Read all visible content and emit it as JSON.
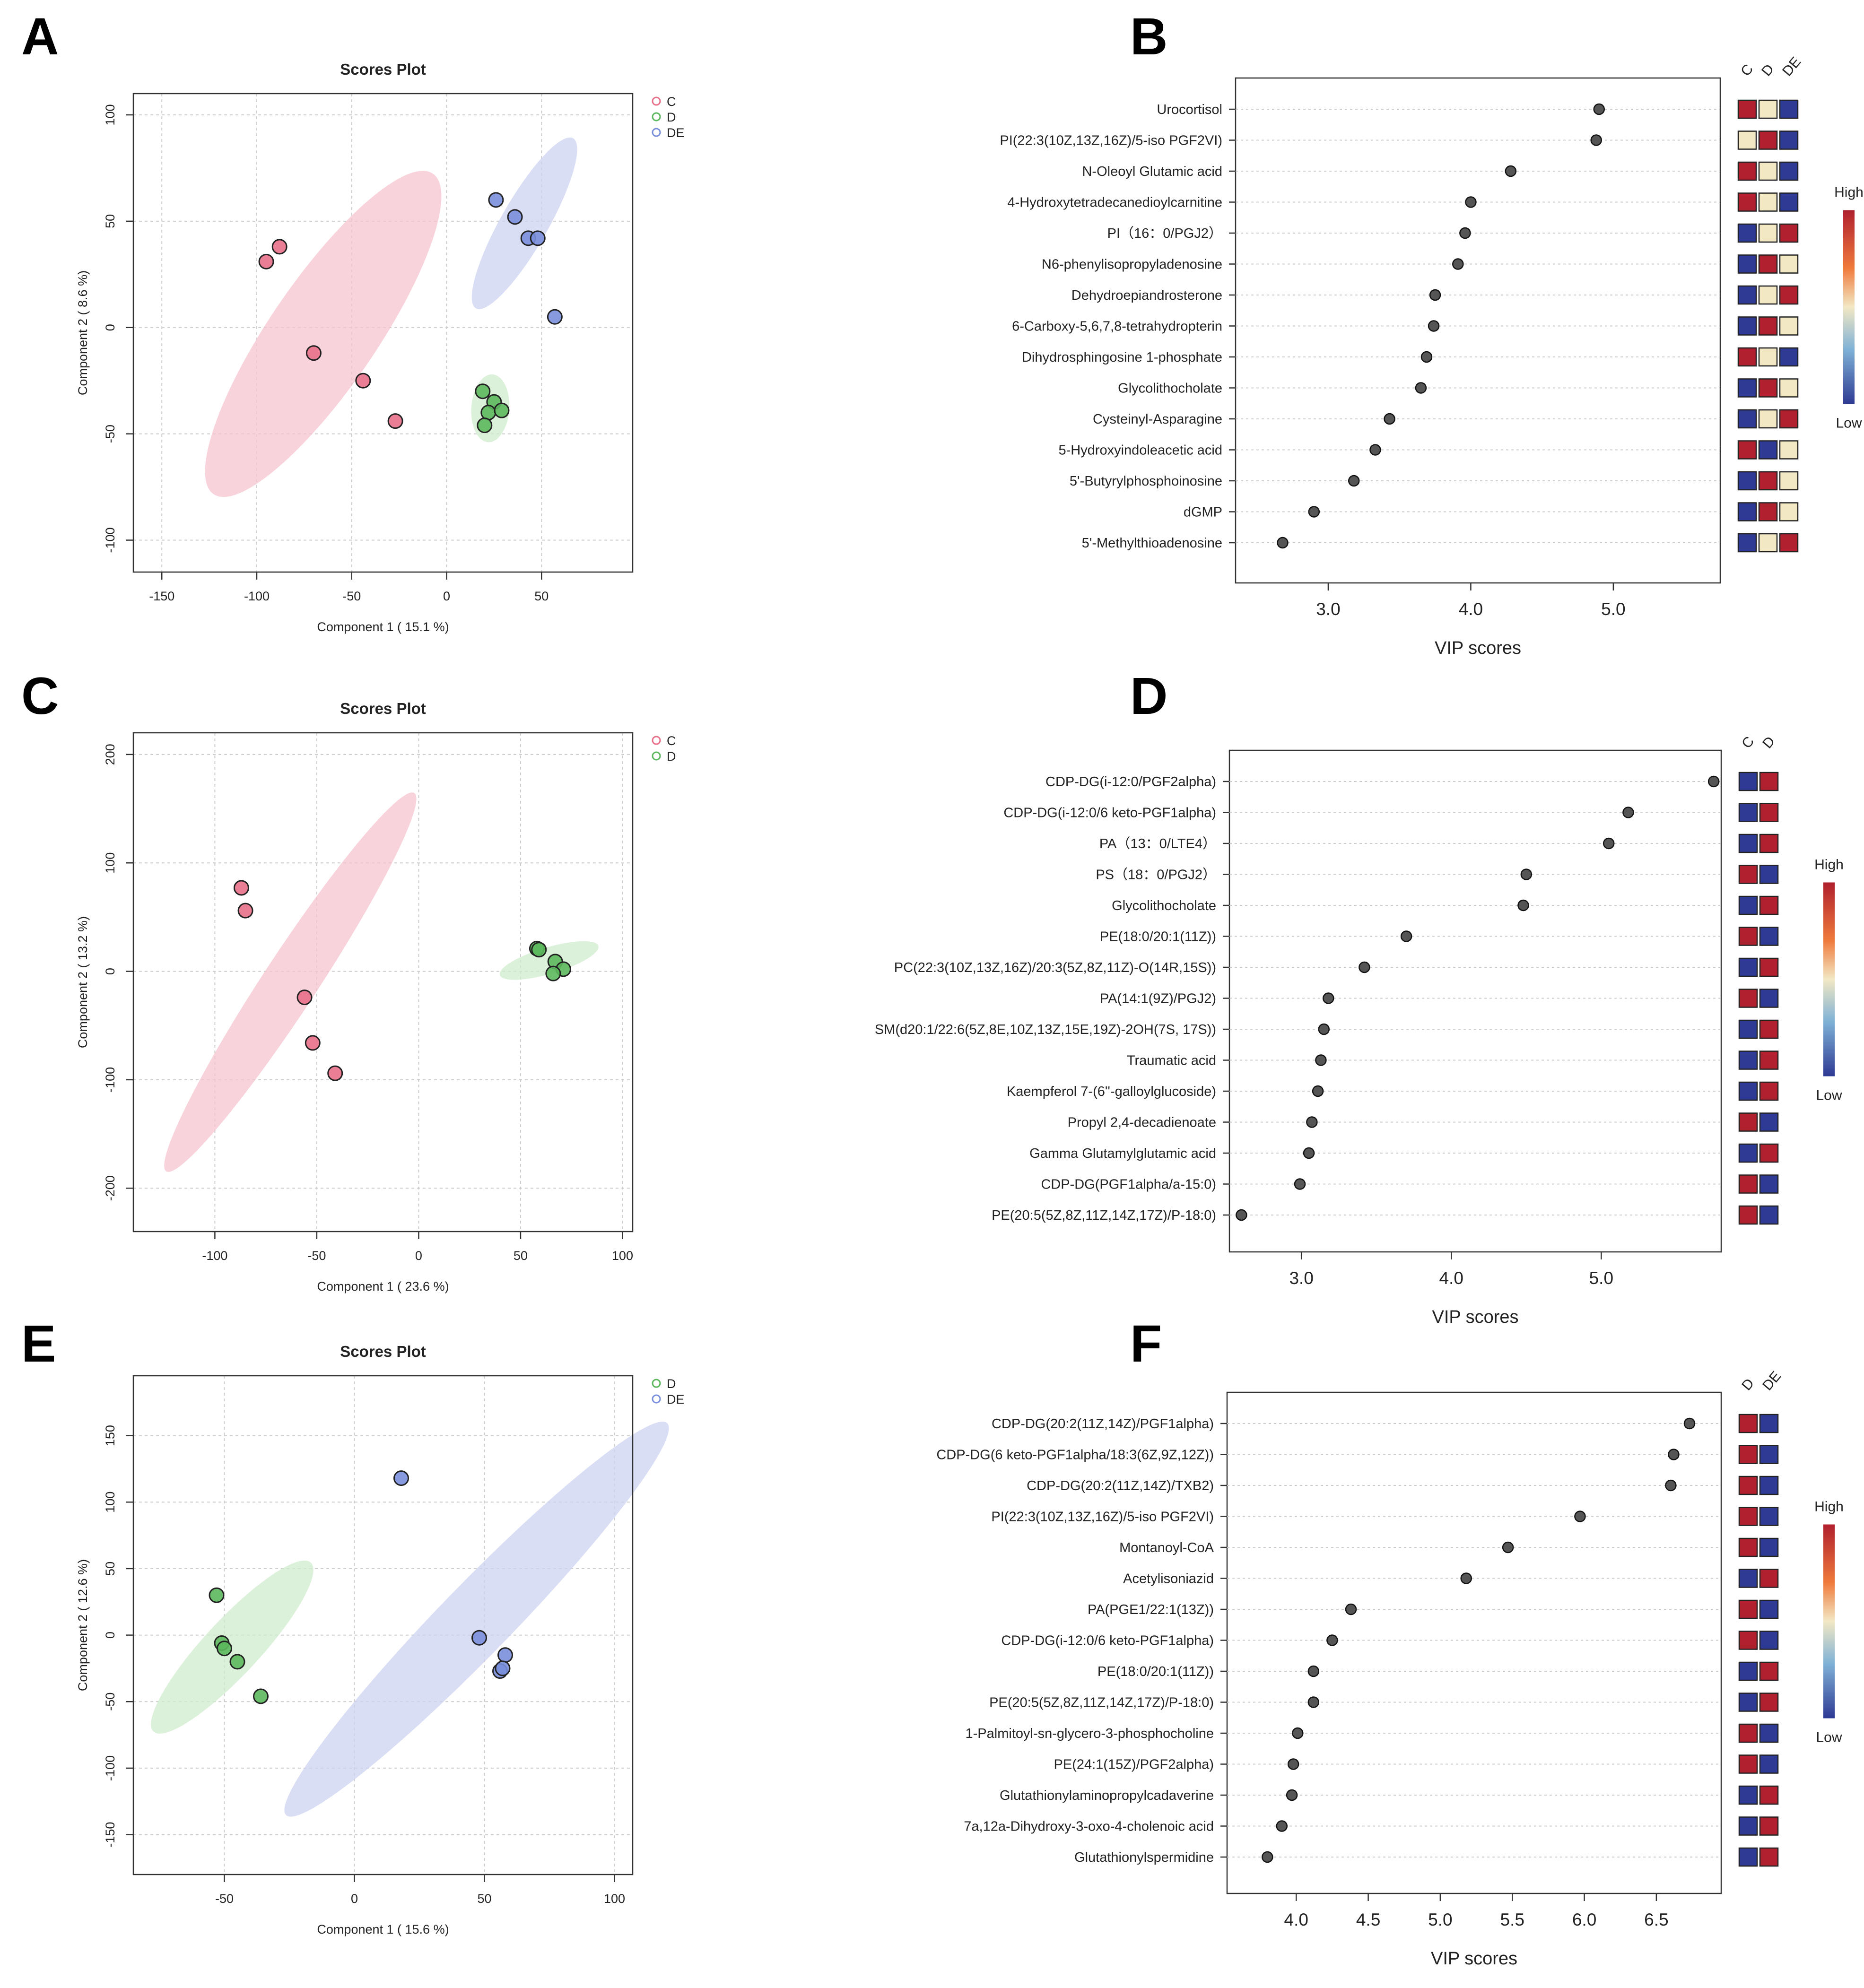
{
  "colors": {
    "C": "#e8708a",
    "C_fill": "#f6c4cf",
    "D": "#5cb85c",
    "D_fill": "#cfeccc",
    "DE": "#7a8fdc",
    "DE_fill": "#cdd3f2",
    "heat_high": "#b0202e",
    "heat_mid": "#f2e8c4",
    "heat_low": "#2e3a94",
    "dot": "#555555",
    "grid": "#cccccc"
  },
  "chart_data": [
    {
      "panel": "A",
      "type": "scatter",
      "title": "Scores Plot",
      "xlabel": "Component 1 ( 15.1 %)",
      "ylabel": "Component 2 ( 8.6 %)",
      "xlim": [
        -165,
        98
      ],
      "ylim": [
        -115,
        110
      ],
      "xticks": [
        -150,
        -100,
        -50,
        0,
        50
      ],
      "yticks": [
        -100,
        -50,
        0,
        50,
        100
      ],
      "legend": [
        "C",
        "D",
        "DE"
      ],
      "legend_position": "top-right",
      "series": [
        {
          "name": "C",
          "points": [
            [
              -88,
              38
            ],
            [
              -95,
              31
            ],
            [
              -70,
              -12
            ],
            [
              -44,
              -25
            ],
            [
              -27,
              -44
            ]
          ],
          "ellipse": {
            "cx": -65,
            "cy": -3,
            "major": 190,
            "minor": 54,
            "angle_deg": -52
          }
        },
        {
          "name": "D",
          "points": [
            [
              19,
              -30
            ],
            [
              25,
              -35
            ],
            [
              22,
              -40
            ],
            [
              29,
              -39
            ],
            [
              20,
              -46
            ]
          ],
          "ellipse": {
            "cx": 23,
            "cy": -38,
            "major": 32,
            "minor": 20,
            "angle_deg": -85
          }
        },
        {
          "name": "DE",
          "points": [
            [
              26,
              60
            ],
            [
              36,
              52
            ],
            [
              43,
              42
            ],
            [
              48,
              42
            ],
            [
              57,
              5
            ]
          ],
          "ellipse": {
            "cx": 41,
            "cy": 49,
            "major": 95,
            "minor": 24,
            "angle_deg": -57
          }
        }
      ]
    },
    {
      "panel": "B",
      "type": "dot",
      "xlabel": "VIP scores",
      "xlim": [
        2.35,
        5.75
      ],
      "xticks": [
        3.0,
        4.0,
        5.0
      ],
      "heat_columns": [
        "C",
        "D",
        "DE"
      ],
      "legend_high": "High",
      "legend_low": "Low",
      "items": [
        {
          "label": "Urocortisol",
          "value": 4.9,
          "heat": [
            "H",
            "M",
            "L"
          ]
        },
        {
          "label": "PI(22:3(10Z,13Z,16Z)/5-iso PGF2VI)",
          "value": 4.88,
          "heat": [
            "M",
            "H",
            "L"
          ]
        },
        {
          "label": "N-Oleoyl Glutamic acid",
          "value": 4.28,
          "heat": [
            "H",
            "M",
            "L"
          ]
        },
        {
          "label": "4-Hydroxytetradecanedioylcarnitine",
          "value": 4.0,
          "heat": [
            "H",
            "M",
            "L"
          ]
        },
        {
          "label": "PI（16：0/PGJ2）",
          "value": 3.96,
          "heat": [
            "L",
            "M",
            "H"
          ]
        },
        {
          "label": "N6-phenylisopropyladenosine",
          "value": 3.91,
          "heat": [
            "L",
            "H",
            "M"
          ]
        },
        {
          "label": "Dehydroepiandrosterone",
          "value": 3.75,
          "heat": [
            "L",
            "M",
            "H"
          ]
        },
        {
          "label": "6-Carboxy-5,6,7,8-tetrahydropterin",
          "value": 3.74,
          "heat": [
            "L",
            "H",
            "M"
          ]
        },
        {
          "label": "Dihydrosphingosine 1-phosphate",
          "value": 3.69,
          "heat": [
            "H",
            "M",
            "L"
          ]
        },
        {
          "label": "Glycolithocholate",
          "value": 3.65,
          "heat": [
            "L",
            "H",
            "M"
          ]
        },
        {
          "label": "Cysteinyl-Asparagine",
          "value": 3.43,
          "heat": [
            "L",
            "M",
            "H"
          ]
        },
        {
          "label": "5-Hydroxyindoleacetic acid",
          "value": 3.33,
          "heat": [
            "H",
            "L",
            "M"
          ]
        },
        {
          "label": "5'-Butyrylphosphoinosine",
          "value": 3.18,
          "heat": [
            "L",
            "H",
            "M"
          ]
        },
        {
          "label": "dGMP",
          "value": 2.9,
          "heat": [
            "L",
            "H",
            "M"
          ]
        },
        {
          "label": "5'-Methylthioadenosine",
          "value": 2.68,
          "heat": [
            "L",
            "M",
            "H"
          ]
        }
      ]
    },
    {
      "panel": "C",
      "type": "scatter",
      "title": "Scores Plot",
      "xlabel": "Component 1 ( 23.6 %)",
      "ylabel": "Component 2 ( 13.2 %)",
      "xlim": [
        -140,
        105
      ],
      "ylim": [
        -240,
        220
      ],
      "xticks": [
        -100,
        -50,
        0,
        50,
        100
      ],
      "yticks": [
        -200,
        -100,
        0,
        100,
        200
      ],
      "legend": [
        "C",
        "D"
      ],
      "legend_position": "top-right",
      "series": [
        {
          "name": "C",
          "points": [
            [
              -87,
              77
            ],
            [
              -85,
              56
            ],
            [
              -56,
              -24
            ],
            [
              -52,
              -66
            ],
            [
              -41,
              -94
            ]
          ],
          "ellipse": {
            "cx": -63,
            "cy": -10,
            "major": 370,
            "minor": 30,
            "angle_deg": -71
          }
        },
        {
          "name": "D",
          "points": [
            [
              58,
              21
            ],
            [
              59,
              20
            ],
            [
              67,
              9
            ],
            [
              71,
              2
            ],
            [
              66,
              -2
            ]
          ],
          "ellipse": {
            "cx": 64,
            "cy": 10,
            "major": 56,
            "minor": 22,
            "angle_deg": -33
          }
        }
      ]
    },
    {
      "panel": "D",
      "type": "dot",
      "xlabel": "VIP scores",
      "xlim": [
        2.52,
        5.8
      ],
      "xticks": [
        3.0,
        4.0,
        5.0
      ],
      "heat_columns": [
        "C",
        "D"
      ],
      "legend_high": "High",
      "legend_low": "Low",
      "items": [
        {
          "label": "CDP-DG(i-12:0/PGF2alpha)",
          "value": 5.75,
          "heat": [
            "L",
            "H"
          ]
        },
        {
          "label": "CDP-DG(i-12:0/6 keto-PGF1alpha)",
          "value": 5.18,
          "heat": [
            "L",
            "H"
          ]
        },
        {
          "label": "PA（13：0/LTE4）",
          "value": 5.05,
          "heat": [
            "L",
            "H"
          ]
        },
        {
          "label": "PS（18：0/PGJ2）",
          "value": 4.5,
          "heat": [
            "H",
            "L"
          ]
        },
        {
          "label": "Glycolithocholate",
          "value": 4.48,
          "heat": [
            "L",
            "H"
          ]
        },
        {
          "label": "PE(18:0/20:1(11Z))",
          "value": 3.7,
          "heat": [
            "H",
            "L"
          ]
        },
        {
          "label": "PC(22:3(10Z,13Z,16Z)/20:3(5Z,8Z,11Z)-O(14R,15S))",
          "value": 3.42,
          "heat": [
            "L",
            "H"
          ]
        },
        {
          "label": "PA(14:1(9Z)/PGJ2)",
          "value": 3.18,
          "heat": [
            "H",
            "L"
          ]
        },
        {
          "label": "SM(d20:1/22:6(5Z,8E,10Z,13Z,15E,19Z)-2OH(7S, 17S))",
          "value": 3.15,
          "heat": [
            "L",
            "H"
          ]
        },
        {
          "label": "Traumatic acid",
          "value": 3.13,
          "heat": [
            "L",
            "H"
          ]
        },
        {
          "label": "Kaempferol 7-(6''-galloylglucoside)",
          "value": 3.11,
          "heat": [
            "L",
            "H"
          ]
        },
        {
          "label": "Propyl 2,4-decadienoate",
          "value": 3.07,
          "heat": [
            "H",
            "L"
          ]
        },
        {
          "label": "Gamma Glutamylglutamic acid",
          "value": 3.05,
          "heat": [
            "L",
            "H"
          ]
        },
        {
          "label": "CDP-DG(PGF1alpha/a-15:0)",
          "value": 2.99,
          "heat": [
            "H",
            "L"
          ]
        },
        {
          "label": "PE(20:5(5Z,8Z,11Z,14Z,17Z)/P-18:0)",
          "value": 2.6,
          "heat": [
            "H",
            "L"
          ]
        }
      ]
    },
    {
      "panel": "E",
      "type": "scatter",
      "title": "Scores Plot",
      "xlabel": "Component 1 ( 15.6 %)",
      "ylabel": "Component 2 ( 12.6 %)",
      "xlim": [
        -85,
        107
      ],
      "ylim": [
        -180,
        195
      ],
      "xticks": [
        -50,
        0,
        50,
        100
      ],
      "yticks": [
        -150,
        -100,
        -50,
        0,
        50,
        100,
        150
      ],
      "legend": [
        "D",
        "DE"
      ],
      "legend_position": "top-right",
      "series": [
        {
          "name": "D",
          "points": [
            [
              -53,
              30
            ],
            [
              -51,
              -6
            ],
            [
              -50,
              -10
            ],
            [
              -45,
              -20
            ],
            [
              -36,
              -46
            ]
          ],
          "ellipse": {
            "cx": -47,
            "cy": -9,
            "major": 142,
            "minor": 26,
            "angle_deg": -66
          }
        },
        {
          "name": "DE",
          "points": [
            [
              18,
              118
            ],
            [
              48,
              -2
            ],
            [
              56,
              -27
            ],
            [
              58,
              -15
            ],
            [
              57,
              -25
            ]
          ],
          "ellipse": {
            "cx": 47,
            "cy": 12,
            "major": 330,
            "minor": 34,
            "angle_deg": -64
          }
        }
      ]
    },
    {
      "panel": "F",
      "type": "dot",
      "xlabel": "VIP scores",
      "xlim": [
        3.52,
        6.95
      ],
      "xticks": [
        4.0,
        4.5,
        5.0,
        5.5,
        6.0,
        6.5
      ],
      "xtick_labels": [
        "4.0",
        "4.5",
        "5.0",
        "5.5",
        "6.0",
        "6.5"
      ],
      "heat_columns": [
        "D",
        "DE"
      ],
      "legend_high": "High",
      "legend_low": "Low",
      "items": [
        {
          "label": "CDP-DG(20:2(11Z,14Z)/PGF1alpha)",
          "value": 6.73,
          "heat": [
            "H",
            "L"
          ]
        },
        {
          "label": "CDP-DG(6 keto-PGF1alpha/18:3(6Z,9Z,12Z))",
          "value": 6.62,
          "heat": [
            "H",
            "L"
          ]
        },
        {
          "label": "CDP-DG(20:2(11Z,14Z)/TXB2)",
          "value": 6.6,
          "heat": [
            "H",
            "L"
          ]
        },
        {
          "label": "PI(22:3(10Z,13Z,16Z)/5-iso PGF2VI)",
          "value": 5.97,
          "heat": [
            "H",
            "L"
          ]
        },
        {
          "label": "Montanoyl-CoA",
          "value": 5.47,
          "heat": [
            "H",
            "L"
          ]
        },
        {
          "label": "Acetylisoniazid",
          "value": 5.18,
          "heat": [
            "L",
            "H"
          ]
        },
        {
          "label": "PA(PGE1/22:1(13Z))",
          "value": 4.38,
          "heat": [
            "H",
            "L"
          ]
        },
        {
          "label": "CDP-DG(i-12:0/6 keto-PGF1alpha)",
          "value": 4.25,
          "heat": [
            "H",
            "L"
          ]
        },
        {
          "label": "PE(18:0/20:1(11Z))",
          "value": 4.12,
          "heat": [
            "L",
            "H"
          ]
        },
        {
          "label": "PE(20:5(5Z,8Z,11Z,14Z,17Z)/P-18:0)",
          "value": 4.12,
          "heat": [
            "L",
            "H"
          ]
        },
        {
          "label": "1-Palmitoyl-sn-glycero-3-phosphocholine",
          "value": 4.01,
          "heat": [
            "H",
            "L"
          ]
        },
        {
          "label": "PE(24:1(15Z)/PGF2alpha)",
          "value": 3.98,
          "heat": [
            "H",
            "L"
          ]
        },
        {
          "label": "Glutathionylaminopropylcadaverine",
          "value": 3.97,
          "heat": [
            "L",
            "H"
          ]
        },
        {
          "label": "7a,12a-Dihydroxy-3-oxo-4-cholenoic acid",
          "value": 3.9,
          "heat": [
            "L",
            "H"
          ]
        },
        {
          "label": "Glutathionylspermidine",
          "value": 3.8,
          "heat": [
            "L",
            "H"
          ]
        }
      ]
    }
  ]
}
